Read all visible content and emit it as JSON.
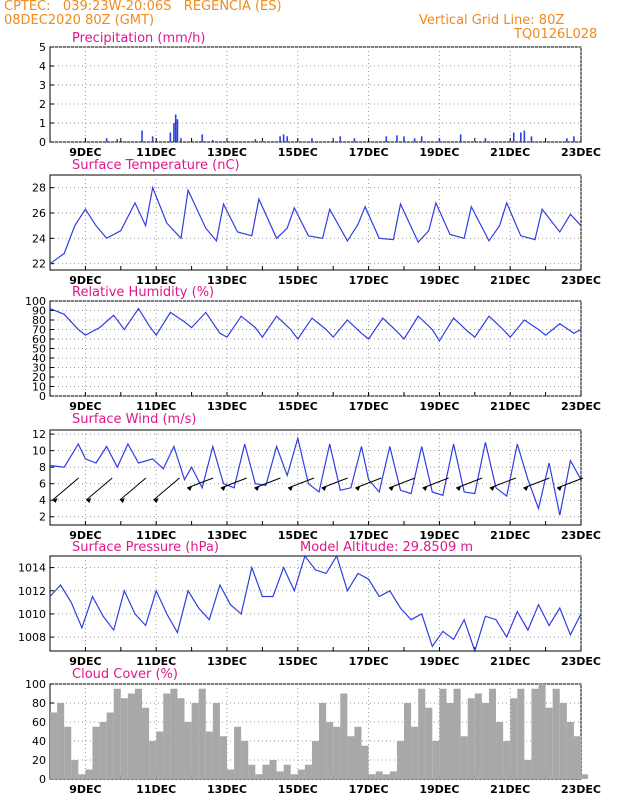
{
  "header": {
    "line1": "CPTEC:   039:23W-20:06S   REGENCIA (ES)",
    "line2": "08DEC2020 80Z (GMT)",
    "right1": "Vertical Grid Line: 80Z",
    "right2": "TQ0126L028"
  },
  "colors": {
    "header": "#f08a1c",
    "title": "#e0178c",
    "series": "#2e3fe0",
    "cloud": "#a8a8a8",
    "grid": "#9a9a9a"
  },
  "x_ticks": [
    "9DEC",
    "11DEC",
    "13DEC",
    "15DEC",
    "17DEC",
    "19DEC",
    "21DEC",
    "23DEC"
  ],
  "model_altitude": "Model Altitude: 29.8509 m",
  "chart_data": [
    {
      "type": "bar",
      "title": "Precipitation (mm/h)",
      "ylim": [
        0,
        5
      ],
      "yticks": [
        "0",
        "1",
        "2",
        "3",
        "4",
        "5"
      ],
      "events": [
        [
          9.6,
          0.2
        ],
        [
          9.9,
          0.15
        ],
        [
          10.6,
          0.6
        ],
        [
          10.9,
          0.3
        ],
        [
          11.4,
          0.5
        ],
        [
          11.5,
          1.0
        ],
        [
          11.55,
          1.45
        ],
        [
          11.6,
          1.2
        ],
        [
          11.7,
          0.2
        ],
        [
          12.3,
          0.4
        ],
        [
          12.6,
          0.1
        ],
        [
          13.8,
          0.15
        ],
        [
          14.5,
          0.3
        ],
        [
          14.6,
          0.4
        ],
        [
          14.7,
          0.3
        ],
        [
          15.4,
          0.2
        ],
        [
          16.2,
          0.3
        ],
        [
          16.6,
          0.2
        ],
        [
          17.5,
          0.3
        ],
        [
          17.8,
          0.35
        ],
        [
          18.0,
          0.3
        ],
        [
          18.3,
          0.2
        ],
        [
          18.5,
          0.3
        ],
        [
          19.0,
          0.2
        ],
        [
          19.6,
          0.4
        ],
        [
          20.3,
          0.2
        ],
        [
          21.1,
          0.5
        ],
        [
          21.3,
          0.5
        ],
        [
          21.4,
          0.6
        ],
        [
          21.6,
          0.3
        ],
        [
          22.6,
          0.2
        ],
        [
          22.8,
          0.3
        ]
      ]
    },
    {
      "type": "line",
      "title": "Surface Temperature (nC)",
      "ylim": [
        21.5,
        29
      ],
      "yticks": [
        "22",
        "24",
        "26",
        "28"
      ],
      "x": [
        8.0,
        8.4,
        8.7,
        9.0,
        9.3,
        9.6,
        10.0,
        10.4,
        10.7,
        10.9,
        11.3,
        11.7,
        11.9,
        12.4,
        12.7,
        12.9,
        13.3,
        13.7,
        13.9,
        14.4,
        14.7,
        14.9,
        15.3,
        15.7,
        15.9,
        16.4,
        16.7,
        16.9,
        17.3,
        17.7,
        17.9,
        18.4,
        18.7,
        18.9,
        19.3,
        19.7,
        19.9,
        20.4,
        20.7,
        20.9,
        21.3,
        21.7,
        21.9,
        22.4,
        22.7,
        23.0
      ],
      "y": [
        22.0,
        22.8,
        25.0,
        26.3,
        25.0,
        24.0,
        24.6,
        26.8,
        25.0,
        28.0,
        25.2,
        24.0,
        27.8,
        24.8,
        23.8,
        26.7,
        24.5,
        24.2,
        27.1,
        24.0,
        24.8,
        26.4,
        24.2,
        24.0,
        26.3,
        23.8,
        25.1,
        26.5,
        24.0,
        23.9,
        26.7,
        23.7,
        24.6,
        26.8,
        24.3,
        24.0,
        26.5,
        23.8,
        25.0,
        26.8,
        24.2,
        23.9,
        26.3,
        24.5,
        25.9,
        25.0
      ]
    },
    {
      "type": "line",
      "title": "Relative Humidity (%)",
      "ylim": [
        0,
        100
      ],
      "yticks": [
        "0",
        "10",
        "20",
        "30",
        "40",
        "50",
        "60",
        "70",
        "80",
        "90",
        "100"
      ],
      "x": [
        8.0,
        8.4,
        8.8,
        9.0,
        9.4,
        9.8,
        10.1,
        10.5,
        10.8,
        11.0,
        11.4,
        11.8,
        12.0,
        12.4,
        12.8,
        13.0,
        13.4,
        13.8,
        14.0,
        14.4,
        14.8,
        15.0,
        15.4,
        15.8,
        16.0,
        16.4,
        16.8,
        17.0,
        17.4,
        17.8,
        18.0,
        18.4,
        18.8,
        19.0,
        19.4,
        19.8,
        20.0,
        20.4,
        20.8,
        21.0,
        21.4,
        21.8,
        22.0,
        22.4,
        22.8,
        23.0
      ],
      "y": [
        92,
        86,
        70,
        64,
        72,
        85,
        70,
        92,
        74,
        64,
        88,
        78,
        72,
        88,
        66,
        62,
        84,
        72,
        62,
        84,
        70,
        60,
        82,
        70,
        62,
        80,
        66,
        60,
        82,
        68,
        60,
        84,
        70,
        58,
        82,
        68,
        62,
        84,
        70,
        62,
        80,
        70,
        64,
        76,
        66,
        70
      ]
    },
    {
      "type": "line",
      "title": "Surface Wind (m/s)",
      "ylim": [
        1,
        12.5
      ],
      "yticks": [
        "2",
        "4",
        "6",
        "8",
        "10",
        "12"
      ],
      "x": [
        8.0,
        8.4,
        8.8,
        9.0,
        9.3,
        9.6,
        9.9,
        10.2,
        10.5,
        10.9,
        11.2,
        11.5,
        11.8,
        12.0,
        12.3,
        12.6,
        12.9,
        13.2,
        13.5,
        13.8,
        14.1,
        14.4,
        14.7,
        15.0,
        15.3,
        15.6,
        15.9,
        16.2,
        16.5,
        16.8,
        17.0,
        17.3,
        17.6,
        17.9,
        18.2,
        18.5,
        18.8,
        19.1,
        19.4,
        19.7,
        20.0,
        20.3,
        20.6,
        20.9,
        21.2,
        21.5,
        21.8,
        22.1,
        22.4,
        22.7,
        23.0
      ],
      "y": [
        8.2,
        8.0,
        10.8,
        9.0,
        8.5,
        10.5,
        8.0,
        10.8,
        8.5,
        9.0,
        7.8,
        10.5,
        6.5,
        8.0,
        5.5,
        10.5,
        6.0,
        5.5,
        10.8,
        6.0,
        5.8,
        10.5,
        7.0,
        11.5,
        6.0,
        5.0,
        10.8,
        5.2,
        5.5,
        10.5,
        6.5,
        5.0,
        10.5,
        5.2,
        4.8,
        10.5,
        5.0,
        4.6,
        10.8,
        5.0,
        4.8,
        11.0,
        5.5,
        4.5,
        10.8,
        6.5,
        3.0,
        8.5,
        2.2,
        8.8,
        6.5
      ]
    },
    {
      "type": "line",
      "title": "Surface Pressure (hPa)",
      "ylim": [
        1006.8,
        1015
      ],
      "yticks": [
        "1008",
        "1010",
        "1012",
        "1014"
      ],
      "x": [
        8.0,
        8.3,
        8.6,
        8.9,
        9.2,
        9.5,
        9.8,
        10.1,
        10.4,
        10.7,
        11.0,
        11.3,
        11.6,
        11.9,
        12.2,
        12.5,
        12.8,
        13.1,
        13.4,
        13.7,
        14.0,
        14.3,
        14.6,
        14.9,
        15.2,
        15.5,
        15.8,
        16.1,
        16.4,
        16.7,
        17.0,
        17.3,
        17.6,
        17.9,
        18.2,
        18.5,
        18.8,
        19.1,
        19.4,
        19.7,
        20.0,
        20.3,
        20.6,
        20.9,
        21.2,
        21.5,
        21.8,
        22.1,
        22.4,
        22.7,
        23.0
      ],
      "y": [
        1011.5,
        1012.5,
        1011.0,
        1008.8,
        1011.5,
        1009.8,
        1008.6,
        1012.0,
        1010.0,
        1009.0,
        1012.0,
        1010.0,
        1008.4,
        1012.0,
        1010.5,
        1009.5,
        1012.5,
        1010.8,
        1010.0,
        1014.0,
        1011.5,
        1011.5,
        1014.0,
        1012.0,
        1015.0,
        1013.8,
        1013.5,
        1015.0,
        1012.0,
        1013.5,
        1013.0,
        1011.5,
        1012.0,
        1010.5,
        1009.5,
        1010.0,
        1007.2,
        1008.5,
        1007.8,
        1009.5,
        1006.8,
        1009.8,
        1009.5,
        1008.0,
        1010.2,
        1008.6,
        1010.8,
        1009.0,
        1010.5,
        1008.2,
        1010.0
      ]
    },
    {
      "type": "area",
      "title": "Cloud Cover (%)",
      "ylim": [
        0,
        100
      ],
      "yticks": [
        "0",
        "20",
        "40",
        "60",
        "80",
        "100"
      ],
      "x": [
        8.0,
        8.2,
        8.4,
        8.6,
        8.8,
        9.0,
        9.2,
        9.4,
        9.6,
        9.8,
        10.0,
        10.2,
        10.4,
        10.6,
        10.8,
        11.0,
        11.2,
        11.4,
        11.6,
        11.8,
        12.0,
        12.2,
        12.4,
        12.6,
        12.8,
        13.0,
        13.2,
        13.4,
        13.6,
        13.8,
        14.0,
        14.2,
        14.4,
        14.6,
        14.8,
        15.0,
        15.2,
        15.4,
        15.6,
        15.8,
        16.0,
        16.2,
        16.4,
        16.6,
        16.8,
        17.0,
        17.2,
        17.4,
        17.6,
        17.8,
        18.0,
        18.2,
        18.4,
        18.6,
        18.8,
        19.0,
        19.2,
        19.4,
        19.6,
        19.8,
        20.0,
        20.2,
        20.4,
        20.6,
        20.8,
        21.0,
        21.2,
        21.4,
        21.6,
        21.8,
        22.0,
        22.2,
        22.4,
        22.6,
        22.8,
        23.0
      ],
      "y": [
        70,
        80,
        55,
        20,
        5,
        10,
        55,
        60,
        70,
        95,
        85,
        90,
        95,
        75,
        40,
        50,
        90,
        95,
        85,
        60,
        80,
        95,
        50,
        80,
        45,
        10,
        55,
        40,
        15,
        5,
        15,
        20,
        8,
        15,
        5,
        10,
        15,
        40,
        80,
        60,
        55,
        90,
        45,
        55,
        35,
        5,
        8,
        5,
        8,
        40,
        80,
        55,
        95,
        75,
        40,
        95,
        80,
        95,
        45,
        85,
        90,
        80,
        95,
        60,
        40,
        85,
        95,
        20,
        95,
        100,
        75,
        95,
        80,
        60,
        45,
        5
      ]
    }
  ]
}
